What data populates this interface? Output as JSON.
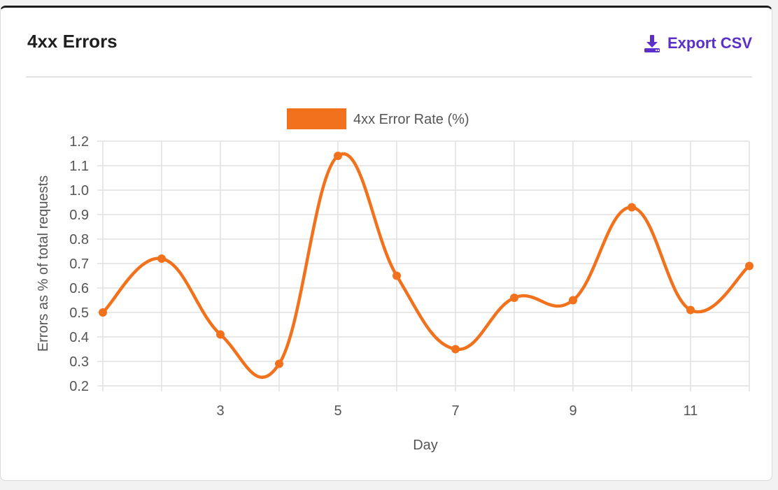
{
  "card": {
    "title": "4xx Errors",
    "export_label": "Export CSV",
    "export_icon": "download-icon"
  },
  "colors": {
    "accent": "#5b2fc9",
    "series": "#f2711c",
    "grid": "#e0e0e0",
    "axis_text": "#555555"
  },
  "chart_data": {
    "type": "line",
    "xlabel": "Day",
    "ylabel": "Errors as % of total requests",
    "x": [
      1,
      2,
      3,
      4,
      5,
      6,
      7,
      8,
      9,
      10,
      11,
      12
    ],
    "xtick_labels": [
      "3",
      "5",
      "7",
      "9",
      "11"
    ],
    "xtick_values": [
      3,
      5,
      7,
      9,
      11
    ],
    "ylim": [
      0.2,
      1.2
    ],
    "yticks": [
      "1.2",
      "1.1",
      "1.0",
      "0.9",
      "0.8",
      "0.7",
      "0.6",
      "0.5",
      "0.4",
      "0.3",
      "0.2"
    ],
    "ytick_values": [
      1.2,
      1.1,
      1.0,
      0.9,
      0.8,
      0.7,
      0.6,
      0.5,
      0.4,
      0.3,
      0.2
    ],
    "grid": true,
    "legend_position": "top-center",
    "series": [
      {
        "name": "4xx Error Rate (%)",
        "values": [
          0.5,
          0.72,
          0.41,
          0.29,
          1.14,
          0.65,
          0.35,
          0.56,
          0.55,
          0.93,
          0.51,
          0.69
        ]
      }
    ]
  }
}
